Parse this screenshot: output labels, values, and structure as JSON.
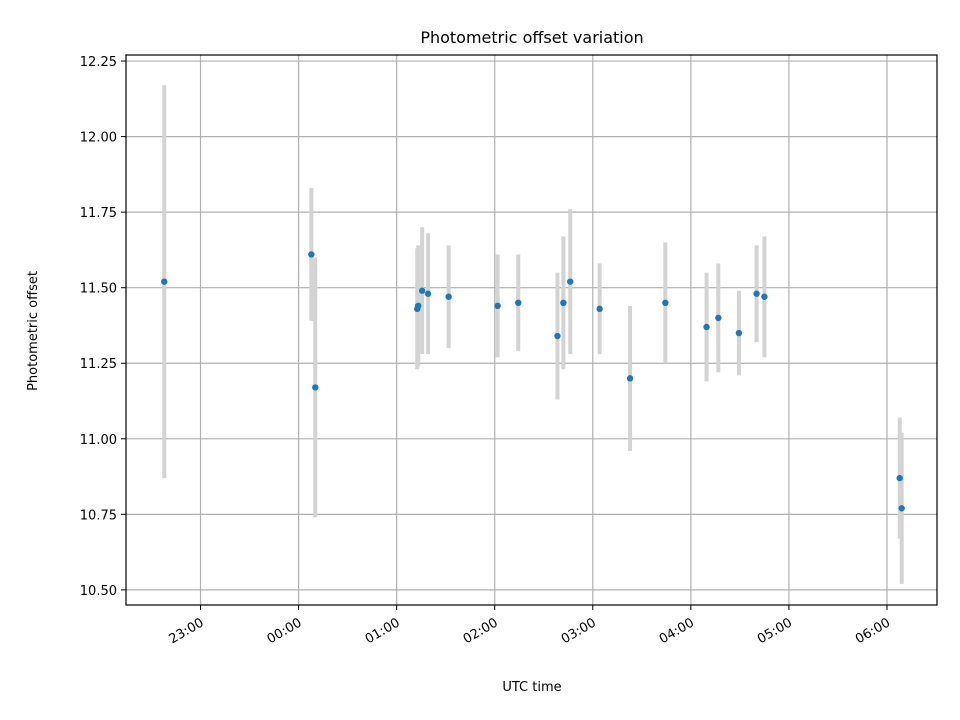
{
  "chart_data": {
    "type": "scatter",
    "title": "Photometric offset variation",
    "xlabel": "UTC time",
    "ylabel": "Photometric offset",
    "grid": true,
    "x_unit": "hours UTC (22:00 = 22.0, values past midnight > 24)",
    "xlim": [
      22.24,
      30.51
    ],
    "ylim": [
      10.45,
      12.27
    ],
    "x_ticks": [
      {
        "value": 23,
        "label": "23:00"
      },
      {
        "value": 24,
        "label": "00:00"
      },
      {
        "value": 25,
        "label": "01:00"
      },
      {
        "value": 26,
        "label": "02:00"
      },
      {
        "value": 27,
        "label": "03:00"
      },
      {
        "value": 28,
        "label": "04:00"
      },
      {
        "value": 29,
        "label": "05:00"
      },
      {
        "value": 30,
        "label": "06:00"
      }
    ],
    "y_ticks": [
      {
        "value": 10.5,
        "label": "10.50"
      },
      {
        "value": 10.75,
        "label": "10.75"
      },
      {
        "value": 11.0,
        "label": "11.00"
      },
      {
        "value": 11.25,
        "label": "11.25"
      },
      {
        "value": 11.5,
        "label": "11.50"
      },
      {
        "value": 11.75,
        "label": "11.75"
      },
      {
        "value": 12.0,
        "label": "12.00"
      },
      {
        "value": 12.25,
        "label": "12.25"
      }
    ],
    "colors": {
      "point": "#1f77b4",
      "errorbar": "#d3d3d3",
      "grid": "#b0b0b0"
    },
    "points": [
      {
        "x": 22.63,
        "y": 11.52,
        "err": 0.65
      },
      {
        "x": 24.13,
        "y": 11.61,
        "err": 0.22
      },
      {
        "x": 24.17,
        "y": 11.17,
        "err": 0.43
      },
      {
        "x": 25.21,
        "y": 11.43,
        "err": 0.2
      },
      {
        "x": 25.22,
        "y": 11.44,
        "err": 0.2
      },
      {
        "x": 25.26,
        "y": 11.49,
        "err": 0.21
      },
      {
        "x": 25.32,
        "y": 11.48,
        "err": 0.2
      },
      {
        "x": 25.53,
        "y": 11.47,
        "err": 0.17
      },
      {
        "x": 26.03,
        "y": 11.44,
        "err": 0.17
      },
      {
        "x": 26.24,
        "y": 11.45,
        "err": 0.16
      },
      {
        "x": 26.64,
        "y": 11.34,
        "err": 0.21
      },
      {
        "x": 26.7,
        "y": 11.45,
        "err": 0.22
      },
      {
        "x": 26.77,
        "y": 11.52,
        "err": 0.24
      },
      {
        "x": 27.07,
        "y": 11.43,
        "err": 0.15
      },
      {
        "x": 27.38,
        "y": 11.2,
        "err": 0.24
      },
      {
        "x": 27.74,
        "y": 11.45,
        "err": 0.2
      },
      {
        "x": 28.16,
        "y": 11.37,
        "err": 0.18
      },
      {
        "x": 28.28,
        "y": 11.4,
        "err": 0.18
      },
      {
        "x": 28.49,
        "y": 11.35,
        "err": 0.14
      },
      {
        "x": 28.67,
        "y": 11.48,
        "err": 0.16
      },
      {
        "x": 28.75,
        "y": 11.47,
        "err": 0.2
      },
      {
        "x": 30.13,
        "y": 10.87,
        "err": 0.2
      },
      {
        "x": 30.15,
        "y": 10.77,
        "err": 0.25
      }
    ]
  }
}
